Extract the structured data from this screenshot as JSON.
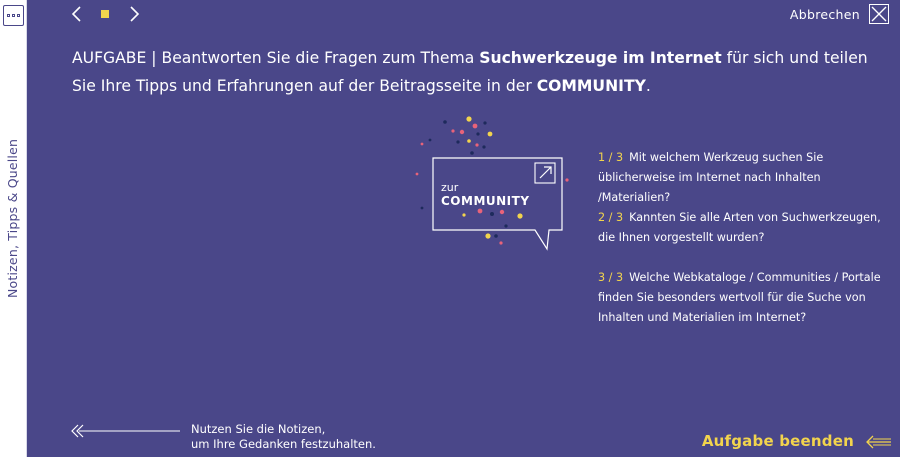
{
  "sidebar": {
    "label": "Notizen, Tipps & Quellen",
    "toggle_icon": "panel-icon"
  },
  "nav": {
    "prev_icon": "chevron-left-icon",
    "next_icon": "chevron-right-icon",
    "indicator_color": "#f2d44d"
  },
  "header": {
    "cancel_label": "Abbrechen",
    "cancel_icon": "close-icon"
  },
  "task": {
    "prefix": "AUFGABE | Beantworten Sie die Fragen zum Thema ",
    "topic": "Suchwerkzeuge im Internet",
    "middle": " für sich und teilen Sie Ihre Tipps und Erfahrungen auf der Beitragsseite in der ",
    "community": "COMMUNITY",
    "suffix": "."
  },
  "community_link": {
    "line1": "zur",
    "line2": "COMMUNITY",
    "icon": "external-link-icon"
  },
  "questions": [
    {
      "num": "1 / 3",
      "text": "Mit welchem Werkzeug suchen Sie üblicherweise im Internet nach Inhalten /Materialien?"
    },
    {
      "num": "2 / 3",
      "text": "Kannten Sie alle Arten von Suchwerkzeugen, die Ihnen vorgestellt wurden?"
    },
    {
      "num": "3 / 3",
      "text": "Welche Webkataloge / Communities / Portale finden Sie besonders wertvoll für die Suche von Inhalten und Materialien im Internet?"
    }
  ],
  "notes_hint": {
    "line1": "Nutzen Sie die Notizen,",
    "line2": "um Ihre Gedanken festzuhalten."
  },
  "footer": {
    "finish_label": "Aufgabe beenden"
  },
  "colors": {
    "background": "#4a4789",
    "accent": "#f2d44d",
    "sidebar": "#ffffff"
  }
}
